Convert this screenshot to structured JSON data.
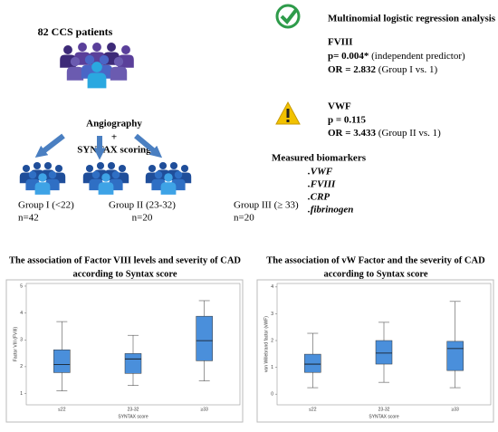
{
  "cohort": {
    "title": "82 CCS patients",
    "procedure": [
      "Angiography",
      "+",
      "SYNTAX scoring"
    ],
    "groups": [
      {
        "label": "Group I (<22)",
        "n": "n=42"
      },
      {
        "label": "Group II (23-32)",
        "n": "n=20"
      },
      {
        "label": "Group III (≥ 33)",
        "n": "n=20"
      }
    ]
  },
  "analysis": {
    "title": "Multinomial logistic regression analysis",
    "fviii": {
      "name": "FVIII",
      "p": "p= 0.004*",
      "p_note": "(independent predictor)",
      "or": "OR = 2.832",
      "or_note": "(Group I vs. 1)"
    },
    "vwf": {
      "name": "VWF",
      "p": "p = 0.115",
      "or": "OR = 3.433",
      "or_note": "(Group II vs. 1)"
    },
    "biomarkers_title": "Measured biomarkers",
    "biomarkers": [
      ".VWF",
      ".FVIII",
      ".CRP",
      ".fibrinogen"
    ]
  },
  "chart_data": [
    {
      "type": "box",
      "title": [
        "The association of Factor VIII levels and severity of CAD",
        "according to Syntax score"
      ],
      "x_label": "SYNTAX score",
      "y_label": "Factor VIII (FVIII)",
      "categories": [
        "≤22",
        "23-32",
        "≥33"
      ],
      "color": "#4a8fdb",
      "ylim": [
        0.58,
        5.1
      ],
      "yticks": [
        1,
        2,
        3,
        4,
        5
      ],
      "values": [
        {
          "min": 1.1,
          "q1": 1.78,
          "median": 2.08,
          "q3": 2.63,
          "max": 3.68
        },
        {
          "min": 1.3,
          "q1": 1.75,
          "median": 2.29,
          "q3": 2.49,
          "max": 3.17
        },
        {
          "min": 1.47,
          "q1": 2.22,
          "median": 2.97,
          "q3": 3.88,
          "max": 4.46
        }
      ]
    },
    {
      "type": "box",
      "title": [
        "The association of vW Factor and the severity of CAD",
        "according to Syntax score"
      ],
      "x_label": "SYNTAX score",
      "y_label": "von Willebrand factor (vWF)",
      "categories": [
        "≤22",
        "23-32",
        "≥33"
      ],
      "color": "#4a8fdb",
      "ylim": [
        -0.4,
        4.13
      ],
      "yticks": [
        0,
        1,
        2,
        3,
        4
      ],
      "values": [
        {
          "min": 0.24,
          "q1": 0.81,
          "median": 1.12,
          "q3": 1.49,
          "max": 2.27
        },
        {
          "min": 0.44,
          "q1": 1.12,
          "median": 1.53,
          "q3": 2.0,
          "max": 2.68
        },
        {
          "min": 0.24,
          "q1": 0.88,
          "median": 1.7,
          "q3": 1.97,
          "max": 3.46
        }
      ]
    }
  ]
}
